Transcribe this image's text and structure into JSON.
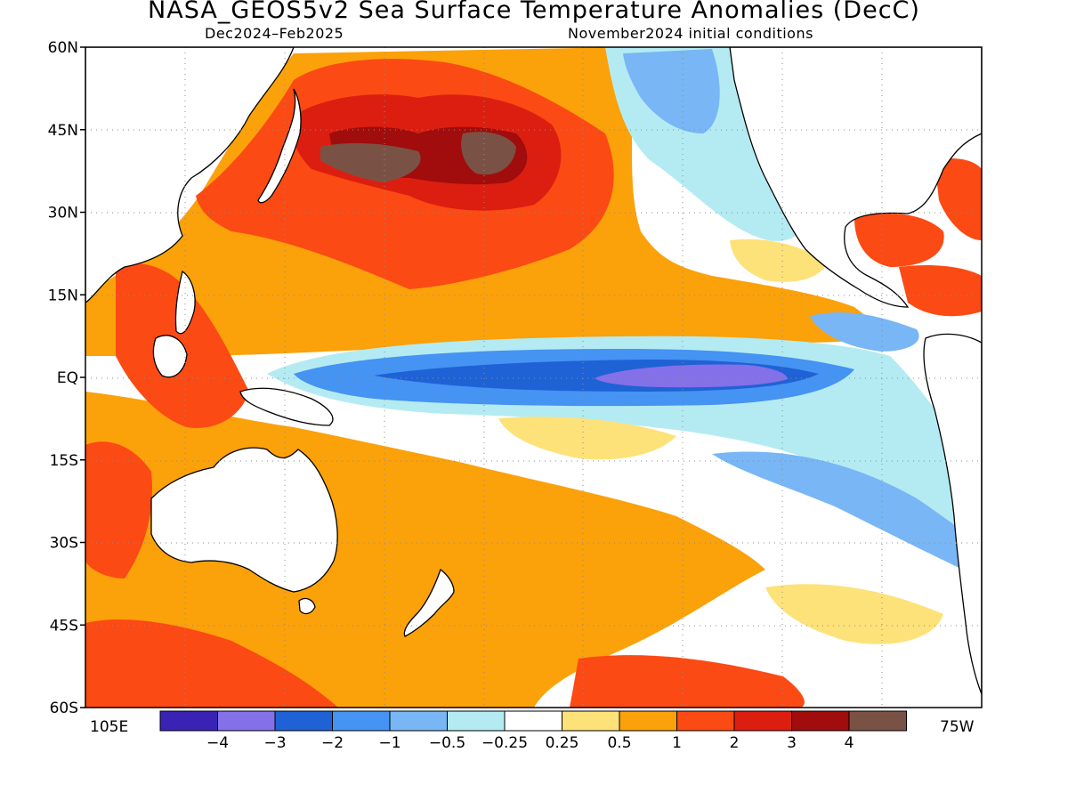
{
  "title": "NASA_GEOS5v2 Sea Surface Temperature Anomalies (DecC)",
  "subtitle_left": "Dec2024–Feb2025",
  "subtitle_right": "November2024 initial conditions",
  "axes": {
    "lat_labels": [
      "60N",
      "45N",
      "30N",
      "15N",
      "EQ",
      "15S",
      "30S",
      "45S",
      "60S"
    ],
    "lat_values": [
      60,
      45,
      30,
      15,
      0,
      -15,
      -30,
      -45,
      -60
    ],
    "lon_left": "105E",
    "lon_right": "75W",
    "grid": "dotted"
  },
  "legend": {
    "placement": "bottom",
    "labels": [
      "−4",
      "−3",
      "−2",
      "−1",
      "−0.5",
      "−0.25",
      "0.25",
      "0.5",
      "1",
      "2",
      "3",
      "4"
    ],
    "colors": [
      "#3a22b4",
      "#8470e8",
      "#1f62d6",
      "#4593f2",
      "#78b6f5",
      "#b4ebf2",
      "#ffffff",
      "#fde27a",
      "#fba10a",
      "#fb4a14",
      "#dc1e10",
      "#a10c0c",
      "#7a5245"
    ]
  }
}
